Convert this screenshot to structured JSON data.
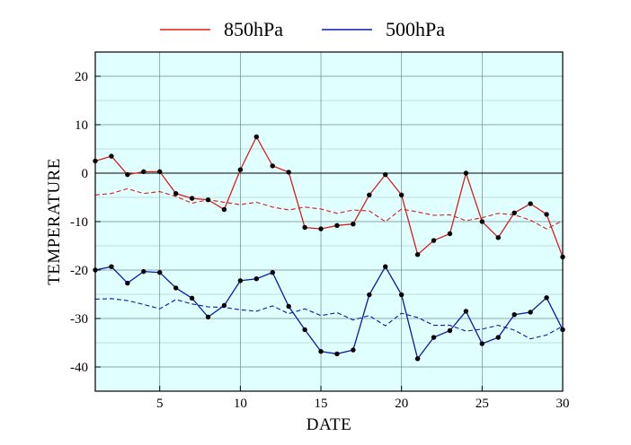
{
  "chart_data": {
    "type": "line",
    "xlabel": "DATE",
    "ylabel": "TEMPERATURE",
    "xlim": [
      1,
      30
    ],
    "ylim": [
      -45,
      25
    ],
    "xticks": [
      5,
      10,
      15,
      20,
      25,
      30
    ],
    "yticks": [
      -40,
      -30,
      -20,
      -10,
      0,
      10,
      20
    ],
    "grid": true,
    "plot_background": "#e0ffff",
    "legend_position": "top",
    "x": [
      1,
      2,
      3,
      4,
      5,
      6,
      7,
      8,
      9,
      10,
      11,
      12,
      13,
      14,
      15,
      16,
      17,
      18,
      19,
      20,
      21,
      22,
      23,
      24,
      25,
      26,
      27,
      28,
      29,
      30
    ],
    "series": [
      {
        "name": "850hPa",
        "color": "#dd1c1c",
        "values": [
          2.5,
          3.5,
          -0.3,
          0.3,
          0.3,
          -4.2,
          -5.2,
          -5.5,
          -7.5,
          0.7,
          7.5,
          1.5,
          0.2,
          -11.2,
          -11.5,
          -10.8,
          -10.5,
          -4.5,
          -0.3,
          -4.5,
          -16.8,
          -13.9,
          -12.5,
          0,
          -10,
          -13.3,
          -8.2,
          -6.3,
          -8.5,
          -17.3
        ],
        "normal_values": [
          -4.5,
          -4.2,
          -3.2,
          -4.2,
          -3.8,
          -4.8,
          -6.2,
          -5.5,
          -6.0,
          -6.5,
          -6.0,
          -7.0,
          -7.6,
          -7.0,
          -7.4,
          -8.3,
          -7.6,
          -7.8,
          -10.0,
          -7.4,
          -8.0,
          -8.7,
          -8.6,
          -9.8,
          -9.2,
          -8.3,
          -8.6,
          -9.7,
          -11.5,
          -9.8
        ]
      },
      {
        "name": "500hPa",
        "color": "#0a1aa8",
        "values": [
          -20,
          -19.3,
          -22.7,
          -20.3,
          -20.5,
          -23.7,
          -25.8,
          -29.7,
          -27.3,
          -22.2,
          -21.8,
          -20.5,
          -27.5,
          -32.3,
          -36.8,
          -37.3,
          -36.5,
          -25.1,
          -19.3,
          -25.1,
          -38.3,
          -33.9,
          -32.5,
          -28.5,
          -35.2,
          -33.9,
          -29.2,
          -28.7,
          -25.7,
          -32.3
        ],
        "normal_values": [
          -26.0,
          -25.9,
          -26.3,
          -27.1,
          -28.0,
          -26.1,
          -27.0,
          -27.6,
          -27.7,
          -28.2,
          -28.5,
          -27.4,
          -29.0,
          -28.0,
          -29.4,
          -28.8,
          -30.3,
          -29.4,
          -31.5,
          -28.9,
          -29.8,
          -31.4,
          -31.4,
          -32.6,
          -32.2,
          -31.4,
          -32.4,
          -34.2,
          -33.4,
          -31.6
        ]
      }
    ]
  }
}
